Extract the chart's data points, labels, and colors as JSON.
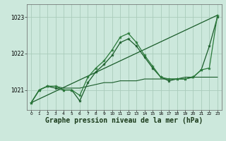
{
  "bg_color": "#cce8dc",
  "grid_color": "#aaccbb",
  "line_color_dark": "#1a5c2a",
  "line_color_mid": "#2a7a3a",
  "xlabel": "Graphe pression niveau de la mer (hPa)",
  "xlabel_fontsize": 7,
  "ylabel_ticks": [
    1021,
    1022,
    1023
  ],
  "xlim": [
    -0.5,
    23.5
  ],
  "ylim": [
    1020.45,
    1023.35
  ],
  "x_ticks": [
    0,
    1,
    2,
    3,
    4,
    5,
    6,
    7,
    8,
    9,
    10,
    11,
    12,
    13,
    14,
    15,
    16,
    17,
    18,
    19,
    20,
    21,
    22,
    23
  ],
  "series_hump": {
    "x": [
      0,
      1,
      2,
      3,
      4,
      5,
      6,
      7,
      8,
      9,
      10,
      11,
      12,
      13,
      14,
      15,
      16,
      17,
      18,
      19,
      20,
      21,
      22,
      23
    ],
    "y": [
      1020.65,
      1021.0,
      1021.1,
      1021.1,
      1021.0,
      1021.0,
      1020.85,
      1021.35,
      1021.6,
      1021.8,
      1022.1,
      1022.45,
      1022.55,
      1022.3,
      1021.95,
      1021.65,
      1021.35,
      1021.3,
      1021.3,
      1021.3,
      1021.35,
      1021.55,
      1021.6,
      1023.05
    ]
  },
  "series_hump2": {
    "x": [
      0,
      1,
      2,
      3,
      4,
      5,
      6,
      7,
      8,
      9,
      10,
      11,
      12,
      13,
      14,
      15,
      16,
      17,
      18,
      19,
      20,
      21,
      22,
      23
    ],
    "y": [
      1020.65,
      1021.0,
      1021.1,
      1021.05,
      1021.0,
      1021.0,
      1020.7,
      1021.2,
      1021.5,
      1021.7,
      1021.95,
      1022.3,
      1022.4,
      1022.2,
      1021.9,
      1021.6,
      1021.35,
      1021.25,
      1021.3,
      1021.3,
      1021.35,
      1021.55,
      1022.2,
      1023.0
    ]
  },
  "series_flat": {
    "x": [
      0,
      1,
      2,
      3,
      4,
      5,
      6,
      7,
      8,
      9,
      10,
      11,
      12,
      13,
      14,
      15,
      16,
      17,
      18,
      19,
      20,
      21,
      22,
      23
    ],
    "y": [
      1020.65,
      1021.0,
      1021.1,
      1021.1,
      1021.05,
      1021.05,
      1021.05,
      1021.1,
      1021.15,
      1021.2,
      1021.2,
      1021.25,
      1021.25,
      1021.25,
      1021.3,
      1021.3,
      1021.3,
      1021.3,
      1021.3,
      1021.35,
      1021.35,
      1021.35,
      1021.35,
      1021.35
    ]
  },
  "series_linear": {
    "x": [
      0,
      23
    ],
    "y": [
      1020.65,
      1023.05
    ]
  }
}
